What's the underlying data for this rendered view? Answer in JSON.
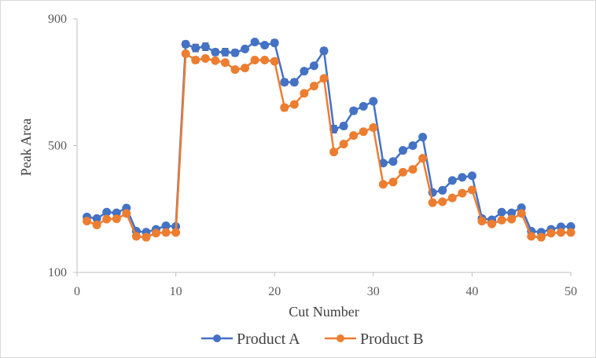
{
  "chart_data": {
    "type": "line",
    "title": "",
    "xlabel": "Cut Number",
    "ylabel": "Peak Area",
    "xlim": [
      0,
      50
    ],
    "ylim": [
      100,
      900
    ],
    "xticks": [
      0,
      10,
      20,
      30,
      40,
      50
    ],
    "yticks": [
      100,
      500,
      900
    ],
    "grid": false,
    "legend_position": "bottom",
    "x": [
      1,
      2,
      3,
      4,
      5,
      6,
      7,
      8,
      9,
      10,
      11,
      12,
      13,
      14,
      15,
      16,
      17,
      18,
      19,
      20,
      21,
      22,
      23,
      24,
      25,
      26,
      27,
      28,
      29,
      30,
      31,
      32,
      33,
      34,
      35,
      36,
      37,
      38,
      39,
      40,
      41,
      42,
      43,
      44,
      45,
      46,
      47,
      48,
      49,
      50
    ],
    "series": [
      {
        "name": "Product A",
        "color": "#4472C4",
        "values": [
          275,
          270,
          290,
          288,
          303,
          230,
          227,
          236,
          247,
          245,
          820,
          808,
          812,
          795,
          795,
          793,
          805,
          827,
          817,
          824,
          700,
          700,
          735,
          752,
          799,
          552,
          562,
          610,
          624,
          640,
          445,
          450,
          485,
          500,
          527,
          352,
          359,
          390,
          400,
          405,
          270,
          266,
          290,
          288,
          304,
          230,
          227,
          236,
          244,
          245
        ],
        "errors": [
          7,
          5,
          3,
          3,
          3,
          3,
          3,
          3,
          3,
          3,
          10,
          12,
          12,
          10,
          12,
          10,
          8,
          6,
          6,
          10,
          10,
          10,
          5,
          8,
          10,
          12,
          10,
          10,
          8,
          6,
          6,
          5,
          5,
          5,
          6,
          5,
          5,
          5,
          5,
          5,
          5,
          5,
          5,
          5,
          5,
          5,
          5,
          5,
          5,
          5
        ]
      },
      {
        "name": "Product B",
        "color": "#ED7D31",
        "values": [
          262,
          250,
          268,
          269,
          286,
          214,
          211,
          224,
          226,
          226,
          790,
          770,
          775,
          768,
          762,
          740,
          745,
          770,
          770,
          766,
          620,
          630,
          665,
          688,
          712,
          480,
          505,
          532,
          544,
          557,
          378,
          385,
          416,
          425,
          460,
          320,
          323,
          335,
          350,
          360,
          262,
          253,
          265,
          268,
          286,
          214,
          211,
          224,
          226,
          226
        ],
        "errors": [
          5,
          5,
          3,
          3,
          3,
          3,
          3,
          3,
          3,
          3,
          8,
          10,
          8,
          6,
          6,
          8,
          5,
          5,
          5,
          5,
          10,
          8,
          5,
          5,
          8,
          8,
          8,
          5,
          5,
          5,
          5,
          5,
          5,
          5,
          5,
          5,
          5,
          5,
          8,
          5,
          5,
          5,
          5,
          5,
          5,
          5,
          5,
          5,
          5,
          5
        ]
      }
    ]
  }
}
